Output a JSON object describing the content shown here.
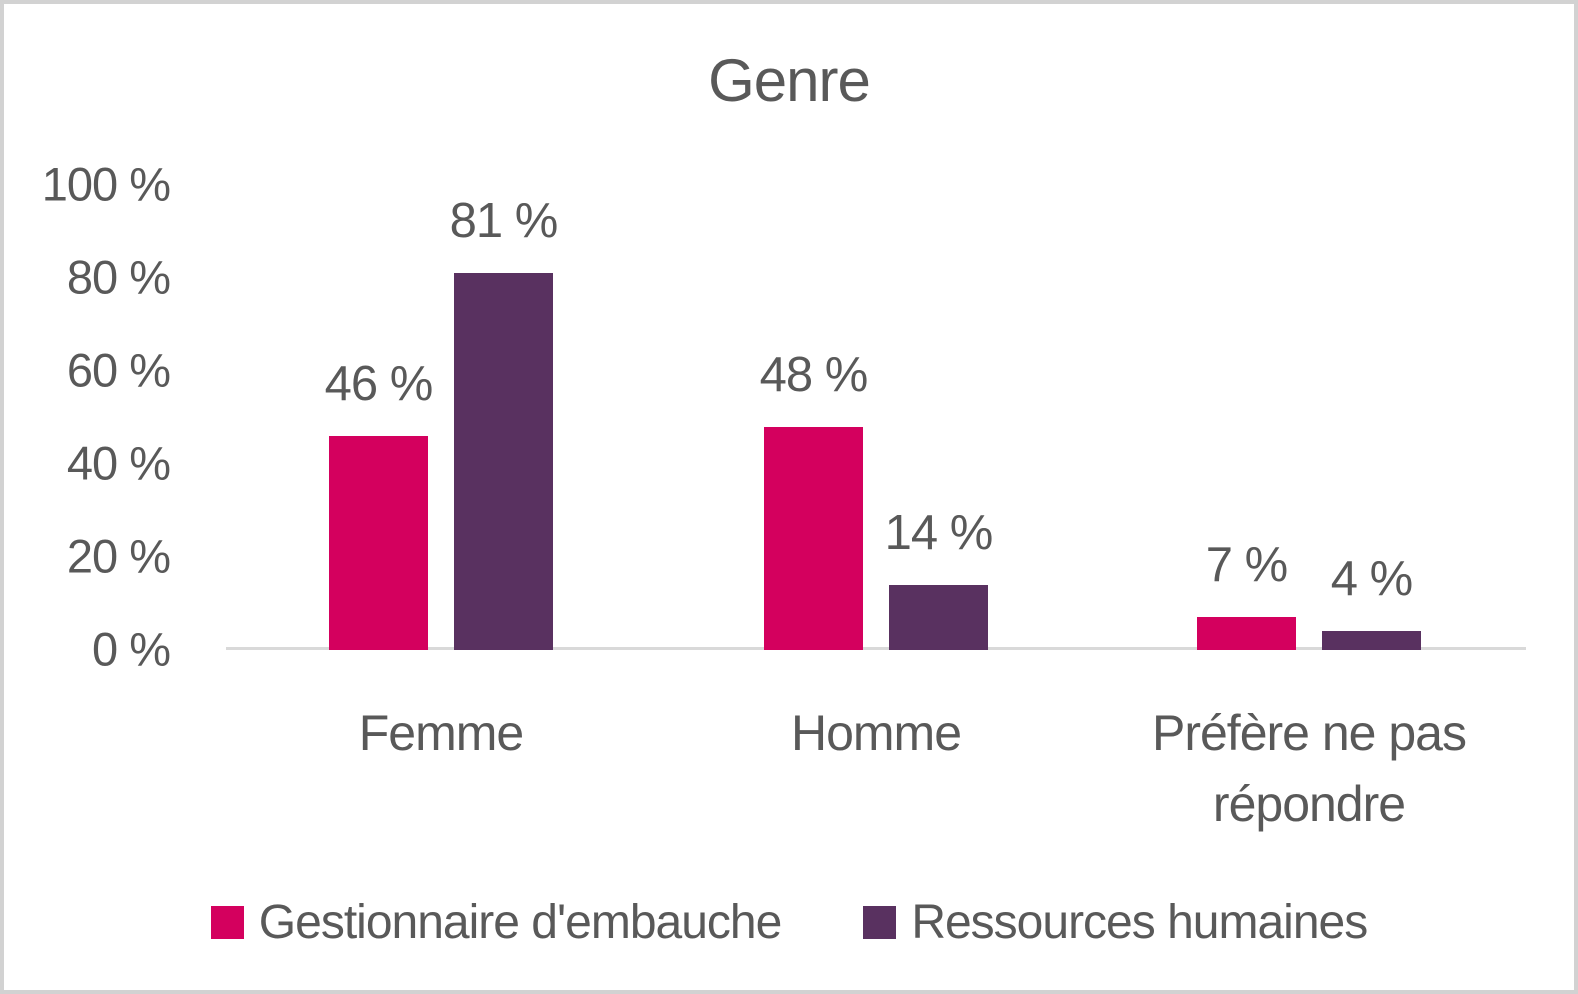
{
  "chart_data": {
    "type": "bar",
    "title": "Genre",
    "categories": [
      "Femme",
      "Homme",
      "Préfère ne pas répondre"
    ],
    "series": [
      {
        "name": "Gestionnaire d'embauche",
        "color": "#D4005E",
        "values": [
          46,
          48,
          7
        ],
        "labels": [
          "46 %",
          "48 %",
          "7 %"
        ]
      },
      {
        "name": "Ressources humaines",
        "color": "#593160",
        "values": [
          81,
          14,
          4
        ],
        "labels": [
          "81 %",
          "14 %",
          "4 %"
        ]
      }
    ],
    "y_axis": {
      "min": 0,
      "max": 100,
      "tick_step": 20,
      "tick_labels": [
        "0 %",
        "20 %",
        "40 %",
        "60 %",
        "80 %",
        "100 %"
      ]
    },
    "xlabel": "",
    "ylabel": "",
    "grid": false,
    "legend_position": "bottom",
    "text_color": "#595959",
    "axis_line_color": "#D9D9D9",
    "frame_border_color": "#D2D2D2"
  }
}
